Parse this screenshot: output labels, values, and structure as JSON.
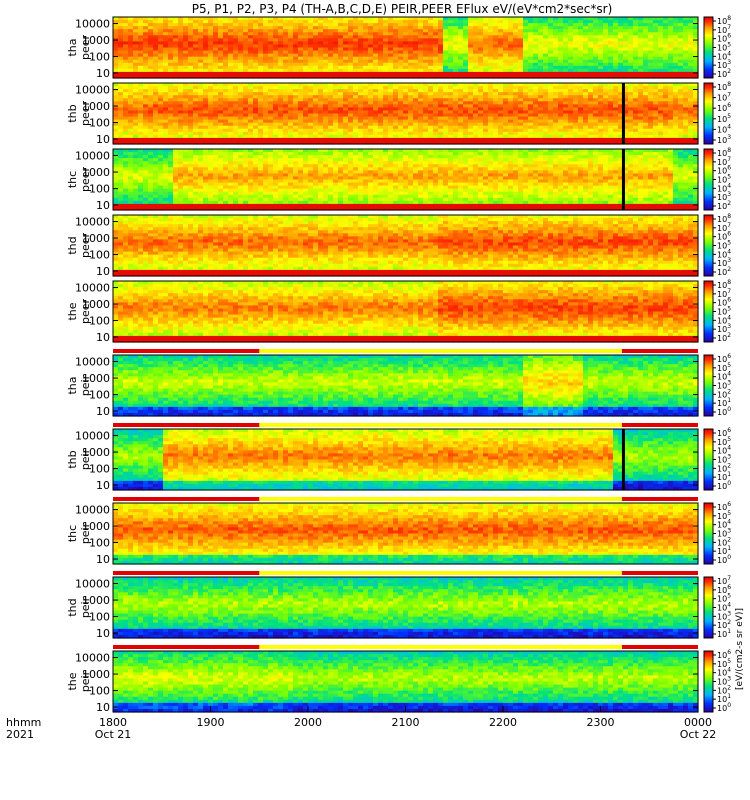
{
  "chart_data": {
    "type": "heatmap",
    "title": "P5, P1, P2, P3, P4 (TH-A,B,C,D,E) PEIR,PEER EFlux eV/(eV*cm2*sec*sr)",
    "colorbar_unit_label": "[eV/(cm2-s sr eV)]",
    "x_axis": {
      "row_label_top": "hhmm",
      "row_label_bottom": "2021",
      "range": [
        "2021-10-21 18:00",
        "2021-10-22 00:00"
      ],
      "ticks": [
        {
          "time": "1800",
          "date": "Oct 21"
        },
        {
          "time": "1900",
          "date": ""
        },
        {
          "time": "2000",
          "date": ""
        },
        {
          "time": "2100",
          "date": ""
        },
        {
          "time": "2200",
          "date": ""
        },
        {
          "time": "2300",
          "date": ""
        },
        {
          "time": "0000",
          "date": "Oct 22"
        }
      ]
    },
    "y_axis": {
      "scale": "log",
      "range_eV": [
        5,
        25000
      ],
      "ticks": [
        "10",
        "100",
        "1000",
        "10000"
      ]
    },
    "panels": [
      {
        "probe": "tha",
        "instrument": "peer",
        "colorbar_ticks": [
          "10^2",
          "10^3",
          "10^4",
          "10^5",
          "10^6",
          "10^7",
          "10^8"
        ],
        "base_level": 0.62,
        "bursts": [
          [
            0.0,
            0.56,
            0.88
          ],
          [
            0.6,
            0.7,
            0.82
          ]
        ]
      },
      {
        "probe": "thb",
        "instrument": "peer",
        "colorbar_ticks": [
          "10^3",
          "10^4",
          "10^5",
          "10^6",
          "10^7",
          "10^8"
        ],
        "base_level": 0.82,
        "bursts": [
          [
            0.05,
            0.95,
            0.85
          ]
        ],
        "gap_at_fraction": 0.87
      },
      {
        "probe": "thc",
        "instrument": "peer",
        "colorbar_ticks": [
          "10^2",
          "10^3",
          "10^4",
          "10^5",
          "10^6",
          "10^7",
          "10^8"
        ],
        "base_level": 0.6,
        "bursts": [
          [
            0.1,
            0.95,
            0.75
          ]
        ],
        "gap_at_fraction": 0.87
      },
      {
        "probe": "thd",
        "instrument": "peer",
        "colorbar_ticks": [
          "10^2",
          "10^3",
          "10^4",
          "10^5",
          "10^6",
          "10^7",
          "10^8"
        ],
        "base_level": 0.55,
        "bursts": [
          [
            0.0,
            0.55,
            0.82
          ],
          [
            0.55,
            1.0,
            0.86
          ]
        ]
      },
      {
        "probe": "the",
        "instrument": "peer",
        "colorbar_ticks": [
          "10^2",
          "10^3",
          "10^4",
          "10^5",
          "10^6",
          "10^7",
          "10^8"
        ],
        "base_level": 0.55,
        "bursts": [
          [
            0.0,
            0.55,
            0.8
          ],
          [
            0.55,
            1.0,
            0.87
          ]
        ]
      },
      {
        "probe": "tha",
        "instrument": "peir",
        "colorbar_ticks": [
          "10^0",
          "10^1",
          "10^2",
          "10^3",
          "10^4",
          "10^5",
          "10^6"
        ],
        "base_level": 0.58,
        "bursts": [
          [
            0.7,
            0.8,
            0.7
          ]
        ]
      },
      {
        "probe": "thb",
        "instrument": "peir",
        "colorbar_ticks": [
          "10^0",
          "10^1",
          "10^2",
          "10^3",
          "10^4",
          "10^5",
          "10^6"
        ],
        "base_level": 0.55,
        "bursts": [
          [
            0.08,
            0.85,
            0.8
          ]
        ],
        "gap_at_fraction": 0.87
      },
      {
        "probe": "thc",
        "instrument": "peir",
        "colorbar_ticks": [
          "10^0",
          "10^1",
          "10^2",
          "10^3",
          "10^4",
          "10^5",
          "10^6"
        ],
        "base_level": 0.58,
        "bursts": [
          [
            0.0,
            1.0,
            0.84
          ]
        ]
      },
      {
        "probe": "thd",
        "instrument": "peir",
        "colorbar_ticks": [
          "10^1",
          "10^2",
          "10^3",
          "10^4",
          "10^5",
          "10^6",
          "10^7"
        ],
        "base_level": 0.56,
        "bursts": []
      },
      {
        "probe": "the",
        "instrument": "peir",
        "colorbar_ticks": [
          "10^0",
          "10^1",
          "10^2",
          "10^3",
          "10^4",
          "10^5",
          "10^6"
        ],
        "base_level": 0.56,
        "bursts": [
          [
            0.0,
            0.3,
            0.6
          ]
        ]
      }
    ],
    "colors": {
      "colormap": [
        "#2a00a0",
        "#0030ff",
        "#00b4ff",
        "#00e080",
        "#80ff00",
        "#ffff00",
        "#ffa000",
        "#ff3000",
        "#e00000",
        "#000000"
      ],
      "mode_bar_red": "#e00000",
      "mode_bar_yellow": "#ffff00"
    }
  }
}
